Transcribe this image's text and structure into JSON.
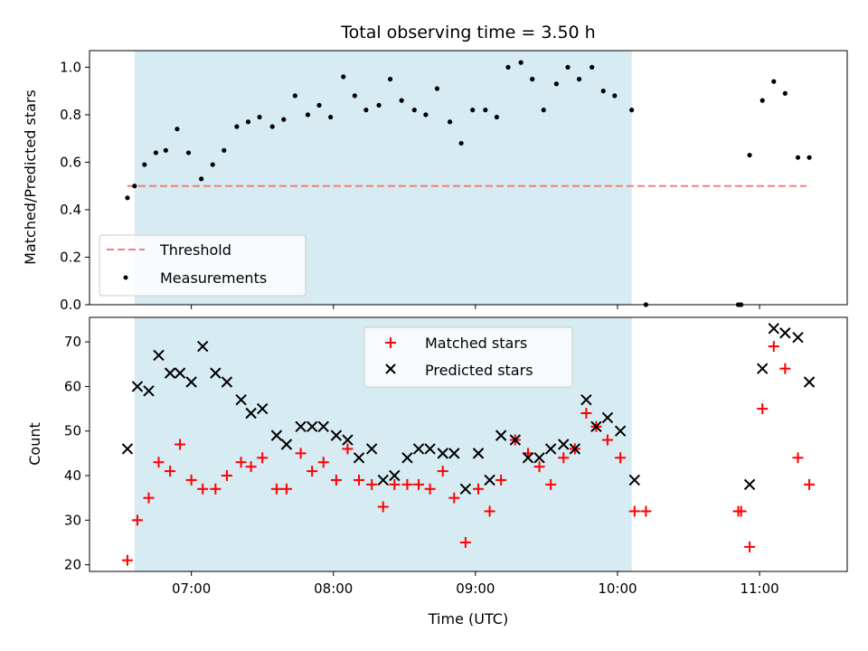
{
  "chart_data": [
    {
      "type": "scatter",
      "title": "Total observing time = 3.50 h",
      "xlabel": "",
      "ylabel": "Matched/Predicted stars",
      "xlim": [
        6.283,
        11.617
      ],
      "ylim": [
        0.0,
        1.07
      ],
      "yticks": [
        0.0,
        0.2,
        0.4,
        0.6,
        0.8,
        1.0
      ],
      "ytick_labels": [
        "0.0",
        "0.2",
        "0.4",
        "0.6",
        "0.8",
        "1.0"
      ],
      "shaded_span": [
        6.6,
        10.1
      ],
      "grid": false,
      "legend_position": "lower-left",
      "threshold": {
        "name": "Threshold",
        "y": 0.5,
        "x": [
          6.55,
          11.33
        ],
        "color": "#f08080"
      },
      "series": [
        {
          "name": "Measurements",
          "color": "#000000",
          "x": [
            6.55,
            6.6,
            6.67,
            6.75,
            6.82,
            6.9,
            6.98,
            7.07,
            7.15,
            7.23,
            7.32,
            7.4,
            7.48,
            7.57,
            7.65,
            7.73,
            7.82,
            7.9,
            7.98,
            8.07,
            8.15,
            8.23,
            8.32,
            8.4,
            8.48,
            8.57,
            8.65,
            8.73,
            8.82,
            8.9,
            8.98,
            9.07,
            9.15,
            9.23,
            9.32,
            9.4,
            9.48,
            9.57,
            9.65,
            9.73,
            9.82,
            9.9,
            9.98,
            10.1,
            10.2,
            10.85,
            10.87,
            10.93,
            11.02,
            11.1,
            11.18,
            11.27,
            11.35
          ],
          "y": [
            0.45,
            0.5,
            0.59,
            0.64,
            0.65,
            0.74,
            0.64,
            0.53,
            0.59,
            0.65,
            0.75,
            0.77,
            0.79,
            0.75,
            0.78,
            0.88,
            0.8,
            0.84,
            0.79,
            0.96,
            0.88,
            0.82,
            0.84,
            0.95,
            0.86,
            0.82,
            0.8,
            0.91,
            0.77,
            0.68,
            0.82,
            0.82,
            0.79,
            1.0,
            1.02,
            0.95,
            0.82,
            0.93,
            1.0,
            0.95,
            1.0,
            0.9,
            0.88,
            0.82,
            0.0,
            0.0,
            0.0,
            0.63,
            0.86,
            0.94,
            0.89,
            0.62,
            0.62
          ]
        }
      ]
    },
    {
      "type": "scatter",
      "title": "",
      "xlabel": "Time (UTC)",
      "ylabel": "Count",
      "xlim": [
        6.283,
        11.617
      ],
      "ylim": [
        18.5,
        75.5
      ],
      "yticks": [
        20,
        30,
        40,
        50,
        60,
        70
      ],
      "ytick_labels": [
        "20",
        "30",
        "40",
        "50",
        "60",
        "70"
      ],
      "xticks": [
        7,
        8,
        9,
        10,
        11
      ],
      "xtick_labels": [
        "07:00",
        "08:00",
        "09:00",
        "10:00",
        "11:00"
      ],
      "shaded_span": [
        6.6,
        10.1
      ],
      "grid": false,
      "legend_position": "upper-center",
      "series": [
        {
          "name": "Matched stars",
          "marker": "plus",
          "color": "#ff0000",
          "x": [
            6.55,
            6.62,
            6.7,
            6.77,
            6.85,
            6.92,
            7.0,
            7.08,
            7.17,
            7.25,
            7.35,
            7.42,
            7.5,
            7.6,
            7.67,
            7.77,
            7.85,
            7.93,
            8.02,
            8.1,
            8.18,
            8.27,
            8.35,
            8.43,
            8.52,
            8.6,
            8.68,
            8.77,
            8.85,
            8.93,
            9.02,
            9.1,
            9.18,
            9.28,
            9.37,
            9.45,
            9.53,
            9.62,
            9.7,
            9.78,
            9.85,
            9.93,
            10.02,
            10.12,
            10.2,
            10.85,
            10.87,
            10.93,
            11.02,
            11.1,
            11.18,
            11.27,
            11.35
          ],
          "y": [
            21,
            30,
            35,
            43,
            41,
            47,
            39,
            37,
            37,
            40,
            43,
            42,
            44,
            37,
            37,
            45,
            41,
            43,
            39,
            46,
            39,
            38,
            33,
            38,
            38,
            38,
            37,
            41,
            35,
            25,
            37,
            32,
            39,
            48,
            45,
            42,
            38,
            44,
            46,
            54,
            51,
            48,
            44,
            32,
            32,
            32,
            32,
            24,
            55,
            69,
            64,
            44,
            38
          ]
        },
        {
          "name": "Predicted stars",
          "marker": "x",
          "color": "#000000",
          "x": [
            6.55,
            6.62,
            6.7,
            6.77,
            6.85,
            6.92,
            7.0,
            7.08,
            7.17,
            7.25,
            7.35,
            7.42,
            7.5,
            7.6,
            7.67,
            7.77,
            7.85,
            7.93,
            8.02,
            8.1,
            8.18,
            8.27,
            8.35,
            8.43,
            8.52,
            8.6,
            8.68,
            8.77,
            8.85,
            8.93,
            9.02,
            9.1,
            9.18,
            9.28,
            9.37,
            9.45,
            9.53,
            9.62,
            9.7,
            9.78,
            9.85,
            9.93,
            10.02,
            10.12,
            10.93,
            11.02,
            11.1,
            11.18,
            11.27,
            11.35
          ],
          "y": [
            46,
            60,
            59,
            67,
            63,
            63,
            61,
            69,
            63,
            61,
            57,
            54,
            55,
            49,
            47,
            51,
            51,
            51,
            49,
            48,
            44,
            46,
            39,
            40,
            44,
            46,
            46,
            45,
            45,
            37,
            45,
            39,
            49,
            48,
            44,
            44,
            46,
            47,
            46,
            57,
            51,
            53,
            50,
            39,
            38,
            64,
            73,
            72,
            71,
            61
          ]
        }
      ]
    }
  ]
}
